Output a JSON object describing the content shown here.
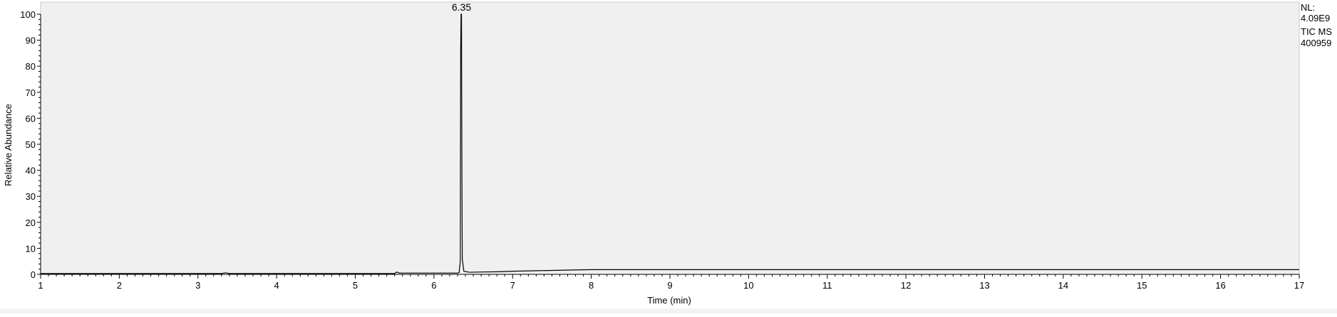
{
  "chart_data": {
    "type": "line",
    "title": "",
    "xlabel": "Time (min)",
    "ylabel": "Relative Abundance",
    "xlim": [
      1,
      17
    ],
    "ylim": [
      0,
      100
    ],
    "x_ticks": [
      "1",
      "2",
      "3",
      "4",
      "5",
      "6",
      "7",
      "8",
      "9",
      "10",
      "11",
      "12",
      "13",
      "14",
      "15",
      "16",
      "17"
    ],
    "y_ticks": [
      "0",
      "10",
      "20",
      "30",
      "40",
      "50",
      "60",
      "70",
      "80",
      "90",
      "100"
    ],
    "grid": false,
    "plot_background": "#f0f0f0",
    "line_color": "#000000",
    "annotations": [
      {
        "x": 6.35,
        "y": 100,
        "text": "6.35"
      }
    ],
    "info_box": {
      "line1": "NL:",
      "line2": "4.09E9",
      "line3": "TIC  MS",
      "line4": "400959"
    },
    "series": [
      {
        "points": [
          [
            1.0,
            0.3
          ],
          [
            2.0,
            0.3
          ],
          [
            3.0,
            0.3
          ],
          [
            3.3,
            0.3
          ],
          [
            3.35,
            0.6
          ],
          [
            3.4,
            0.3
          ],
          [
            4.0,
            0.3
          ],
          [
            5.0,
            0.3
          ],
          [
            5.5,
            0.3
          ],
          [
            5.53,
            0.9
          ],
          [
            5.56,
            0.5
          ],
          [
            5.6,
            0.5
          ],
          [
            6.0,
            0.5
          ],
          [
            6.3,
            0.5
          ],
          [
            6.32,
            0.7
          ],
          [
            6.335,
            5
          ],
          [
            6.34,
            86
          ],
          [
            6.345,
            100
          ],
          [
            6.35,
            100
          ],
          [
            6.355,
            45
          ],
          [
            6.36,
            6
          ],
          [
            6.38,
            1.2
          ],
          [
            6.45,
            0.8
          ],
          [
            6.6,
            0.9
          ],
          [
            6.8,
            1.0
          ],
          [
            7.0,
            1.2
          ],
          [
            7.3,
            1.4
          ],
          [
            7.5,
            1.5
          ],
          [
            7.8,
            1.7
          ],
          [
            8.0,
            1.8
          ],
          [
            9.0,
            1.8
          ],
          [
            10.0,
            1.8
          ],
          [
            11.0,
            1.8
          ],
          [
            12.0,
            1.8
          ],
          [
            13.0,
            1.8
          ],
          [
            14.0,
            1.8
          ],
          [
            15.0,
            1.8
          ],
          [
            16.0,
            1.8
          ],
          [
            17.0,
            1.8
          ]
        ]
      }
    ]
  }
}
